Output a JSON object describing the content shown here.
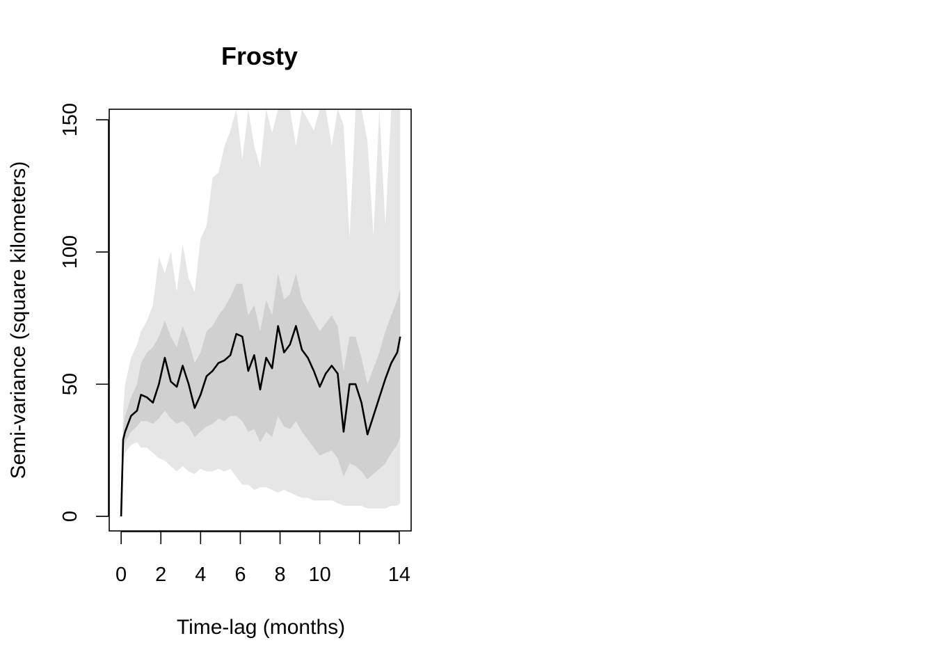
{
  "chart_data": {
    "type": "line",
    "title": "Frosty",
    "xlabel": "Time-lag (months)",
    "ylabel": "Semi-variance (square kilometers)",
    "xlim": [
      -0.6,
      14.6
    ],
    "ylim": [
      -5.5,
      154
    ],
    "x_ticks": [
      0,
      2,
      4,
      6,
      8,
      10,
      12,
      14
    ],
    "x_tick_labels": [
      "0",
      "2",
      "4",
      "6",
      "8",
      "10",
      "",
      "14"
    ],
    "y_ticks": [
      0,
      50,
      100,
      150
    ],
    "y_tick_labels": [
      "0",
      "50",
      "100",
      "150"
    ],
    "colors": {
      "outer_band": "#e6e6e6",
      "inner_band": "#d0d0d0",
      "line": "#000000"
    },
    "x": [
      0,
      0.1,
      0.2,
      0.5,
      0.8,
      1.0,
      1.3,
      1.6,
      1.9,
      2.2,
      2.5,
      2.8,
      3.1,
      3.4,
      3.7,
      4.0,
      4.3,
      4.6,
      4.9,
      5.2,
      5.5,
      5.8,
      6.1,
      6.4,
      6.7,
      7.0,
      7.3,
      7.6,
      7.9,
      8.2,
      8.5,
      8.8,
      9.1,
      9.4,
      9.7,
      10.0,
      10.3,
      10.6,
      10.9,
      11.2,
      11.5,
      11.8,
      12.1,
      12.4,
      12.7,
      13.0,
      13.3,
      13.6,
      13.9,
      14.05
    ],
    "series": [
      {
        "values": [
          0,
          29,
          32,
          38,
          40,
          46,
          45,
          43,
          50,
          60,
          51,
          49,
          57,
          50,
          41,
          46,
          53,
          55,
          58,
          59,
          61,
          69,
          68,
          55,
          61,
          48,
          60,
          56,
          72,
          62,
          65,
          72,
          63,
          60,
          55,
          49,
          54,
          57,
          54,
          32,
          50,
          50,
          43,
          31,
          38,
          45,
          52,
          58,
          62,
          68
        ]
      },
      {
        "values_lower": [
          0,
          20,
          24,
          27,
          28,
          26,
          26,
          24,
          22,
          21,
          19,
          17,
          19,
          17,
          16,
          18,
          17,
          17,
          18,
          17,
          18,
          15,
          12,
          12,
          10,
          11,
          11,
          10,
          9,
          10,
          9,
          8,
          7,
          7,
          6,
          6,
          6,
          6,
          5,
          4,
          4,
          4,
          4,
          3,
          3,
          3,
          3,
          4,
          4,
          5
        ]
      },
      {
        "values_upper": [
          0,
          40,
          50,
          60,
          65,
          70,
          74,
          80,
          98,
          92,
          100,
          85,
          103,
          90,
          85,
          105,
          110,
          128,
          130,
          140,
          146,
          154,
          135,
          154,
          140,
          132,
          154,
          145,
          154,
          154,
          154,
          140,
          154,
          150,
          146,
          154,
          154,
          140,
          154,
          148,
          105,
          154,
          154,
          142,
          106,
          154,
          110,
          154,
          154,
          154
        ]
      },
      {
        "values_inner_lower": [
          0,
          25,
          28,
          32,
          34,
          36,
          36,
          35,
          37,
          40,
          37,
          35,
          36,
          34,
          30,
          32,
          34,
          35,
          37,
          36,
          38,
          38,
          36,
          32,
          33,
          28,
          32,
          30,
          38,
          34,
          33,
          36,
          32,
          29,
          26,
          23,
          24,
          25,
          22,
          15,
          20,
          19,
          17,
          14,
          16,
          18,
          20,
          24,
          27,
          30
        ]
      },
      {
        "values_inner_upper": [
          0,
          33,
          38,
          45,
          50,
          58,
          62,
          64,
          68,
          74,
          68,
          64,
          72,
          66,
          58,
          62,
          70,
          72,
          76,
          79,
          83,
          88,
          88,
          76,
          80,
          70,
          82,
          76,
          92,
          82,
          84,
          92,
          82,
          78,
          74,
          70,
          73,
          76,
          72,
          55,
          68,
          68,
          60,
          50,
          56,
          62,
          70,
          76,
          82,
          86
        ]
      }
    ]
  }
}
